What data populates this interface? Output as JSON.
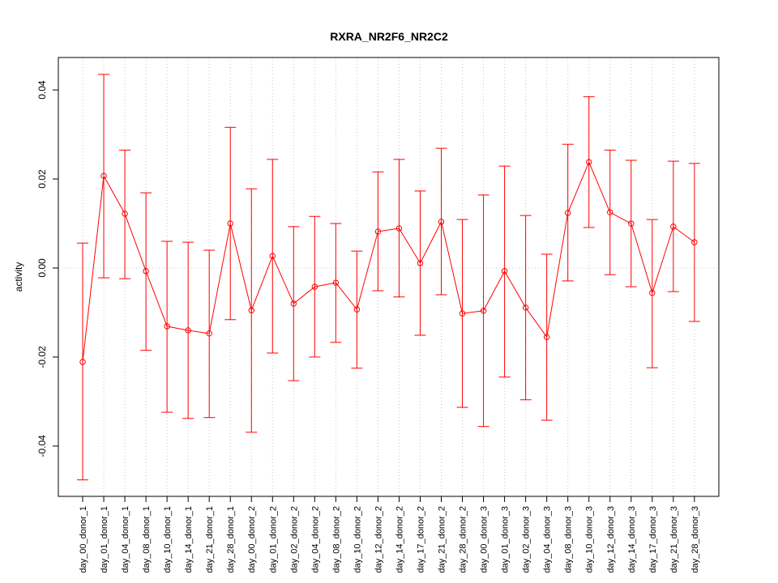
{
  "chart_data": {
    "type": "line",
    "title": "RXRA_NR2F6_NR2C2",
    "xlabel": "",
    "ylabel": "activity",
    "ylim": [
      -0.0513,
      0.0473
    ],
    "yticks": [
      -0.04,
      -0.02,
      0.0,
      0.02,
      0.04
    ],
    "ytick_labels": [
      "-0.04",
      "-0.02",
      "0.00",
      "0.02",
      "0.04"
    ],
    "grid": true,
    "line_color": "#ff0000",
    "categories": [
      "day_00_donor_1",
      "day_01_donor_1",
      "day_04_donor_1",
      "day_08_donor_1",
      "day_10_donor_1",
      "day_14_donor_1",
      "day_21_donor_1",
      "day_28_donor_1",
      "day_00_donor_2",
      "day_01_donor_2",
      "day_02_donor_2",
      "day_04_donor_2",
      "day_08_donor_2",
      "day_10_donor_2",
      "day_12_donor_2",
      "day_14_donor_2",
      "day_17_donor_2",
      "day_21_donor_2",
      "day_28_donor_2",
      "day_00_donor_3",
      "day_01_donor_3",
      "day_02_donor_3",
      "day_04_donor_3",
      "day_08_donor_3",
      "day_10_donor_3",
      "day_12_donor_3",
      "day_14_donor_3",
      "day_17_donor_3",
      "day_21_donor_3",
      "day_28_donor_3"
    ],
    "values": [
      -0.0211,
      0.0207,
      0.0122,
      -0.0007,
      -0.0131,
      -0.014,
      -0.0147,
      0.01,
      -0.0095,
      0.0027,
      -0.008,
      -0.0042,
      -0.0033,
      -0.0093,
      0.0082,
      0.0089,
      0.0011,
      0.0104,
      -0.0102,
      -0.0096,
      -0.0007,
      -0.0089,
      -0.0155,
      0.0124,
      0.0238,
      0.0125,
      0.01,
      -0.0056,
      0.0093,
      0.0058
    ],
    "upper": [
      0.0056,
      0.0435,
      0.0265,
      0.0169,
      0.006,
      0.0058,
      0.004,
      0.0316,
      0.0178,
      0.0244,
      0.0093,
      0.0116,
      0.01,
      0.0038,
      0.0216,
      0.0244,
      0.0173,
      0.0269,
      0.0109,
      0.0164,
      0.0229,
      0.0118,
      0.0031,
      0.0278,
      0.0385,
      0.0265,
      0.0242,
      0.0109,
      0.024,
      0.0235
    ],
    "lower": [
      -0.0476,
      -0.0022,
      -0.0024,
      -0.0185,
      -0.0324,
      -0.0338,
      -0.0336,
      -0.0116,
      -0.0369,
      -0.0191,
      -0.0253,
      -0.02,
      -0.0167,
      -0.0225,
      -0.0051,
      -0.0065,
      -0.0151,
      -0.006,
      -0.0313,
      -0.0356,
      -0.0245,
      -0.0296,
      -0.0342,
      -0.0029,
      0.0091,
      -0.0015,
      -0.0042,
      -0.0224,
      -0.0053,
      -0.012
    ]
  }
}
